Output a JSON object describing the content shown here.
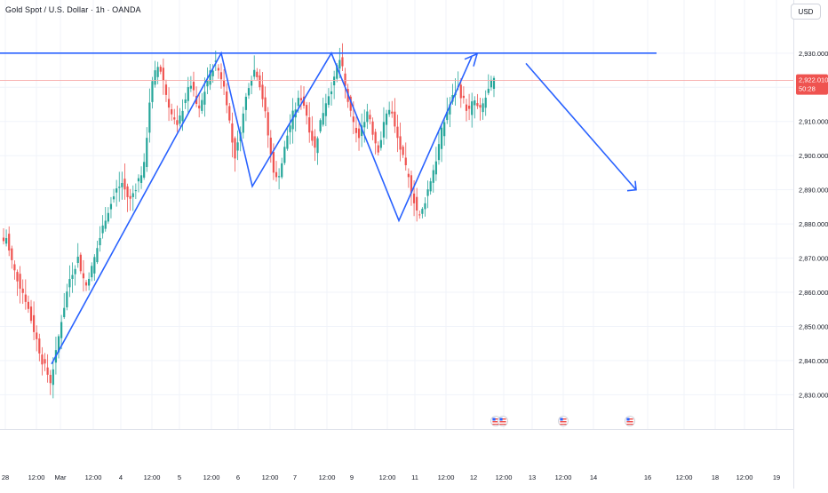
{
  "header": {
    "title": "Gold Spot / U.S. Dollar · 1h · OANDA",
    "currency_button": "USD"
  },
  "price_tag": {
    "price": "2,922.010",
    "countdown": "50:28"
  },
  "colors": {
    "up": "#26a69a",
    "down": "#ef5350",
    "drawing": "#2962ff",
    "grid": "#f0f3fa",
    "price_line": "#f7a8a6",
    "tag": "#ef5350"
  },
  "chart_data": {
    "type": "candlestick",
    "symbol": "Gold Spot / U.S. Dollar",
    "interval": "1h",
    "exchange": "OANDA",
    "ylim": [
      2821,
      2944
    ],
    "y_ticks": [
      2830,
      2840,
      2850,
      2860,
      2870,
      2880,
      2890,
      2900,
      2910,
      2920,
      2930
    ],
    "y_tick_labels": [
      "2,830.000",
      "2,840.000",
      "2,850.000",
      "2,860.000",
      "2,870.000",
      "2,880.000",
      "2,890.000",
      "2,900.000",
      "2,910.000",
      "2,920.000",
      "2,930.000"
    ],
    "x_tick_labels": [
      "28",
      "12:00",
      "Mar",
      "12:00",
      "4",
      "12:00",
      "5",
      "12:00",
      "6",
      "12:00",
      "7",
      "12:00",
      "9",
      "12:00",
      "11",
      "12:00",
      "12",
      "12:00",
      "13",
      "12:00",
      "14",
      "16",
      "12:00",
      "18",
      "12:00",
      "19"
    ],
    "last_price": 2922.01,
    "resistance_level": 2930,
    "pattern_points": [
      2839,
      2930,
      2891,
      2930,
      2881,
      2929
    ],
    "projection": [
      2927,
      2890
    ],
    "price_path": [
      2875,
      2876,
      2872,
      2869,
      2866,
      2864,
      2862,
      2860,
      2858,
      2855,
      2852,
      2849,
      2846,
      2843,
      2840,
      2838,
      2836,
      2834,
      2838,
      2842,
      2847,
      2852,
      2856,
      2860,
      2864,
      2866,
      2868,
      2870,
      2867,
      2864,
      2862,
      2865,
      2867,
      2870,
      2873,
      2876,
      2879,
      2882,
      2884,
      2886,
      2888,
      2890,
      2891,
      2892,
      2890,
      2888,
      2887,
      2889,
      2891,
      2893,
      2895,
      2897,
      2906,
      2916,
      2921,
      2924,
      2926,
      2925,
      2922,
      2918,
      2915,
      2912,
      2910,
      2908,
      2911,
      2914,
      2917,
      2919,
      2921,
      2918,
      2915,
      2913,
      2916,
      2919,
      2922,
      2924,
      2926,
      2927,
      2925,
      2923,
      2920,
      2916,
      2910,
      2904,
      2900,
      2903,
      2908,
      2912,
      2917,
      2921,
      2923,
      2925,
      2924,
      2921,
      2917,
      2912,
      2906,
      2900,
      2896,
      2893,
      2895,
      2898,
      2902,
      2906,
      2909,
      2912,
      2914,
      2916,
      2917,
      2915,
      2912,
      2908,
      2905,
      2902,
      2906,
      2910,
      2913,
      2916,
      2918,
      2920,
      2922,
      2926,
      2928,
      2925,
      2920,
      2916,
      2912,
      2909,
      2907,
      2905,
      2908,
      2911,
      2913,
      2911,
      2907,
      2904,
      2902,
      2905,
      2909,
      2912,
      2914,
      2912,
      2908,
      2905,
      2902,
      2899,
      2896,
      2893,
      2890,
      2887,
      2884,
      2882,
      2884,
      2887,
      2890,
      2893,
      2896,
      2899,
      2903,
      2907,
      2910,
      2913,
      2915,
      2917,
      2919,
      2920,
      2918,
      2916,
      2914,
      2913,
      2915,
      2916,
      2914,
      2913,
      2915,
      2917,
      2919,
      2921,
      2922
    ],
    "x_axis": "time",
    "y_axis": "price",
    "grid": true,
    "event_icons": [
      "flag-us-icon",
      "flag-us-icon",
      "flag-us-icon",
      "flag-us-icon"
    ]
  }
}
